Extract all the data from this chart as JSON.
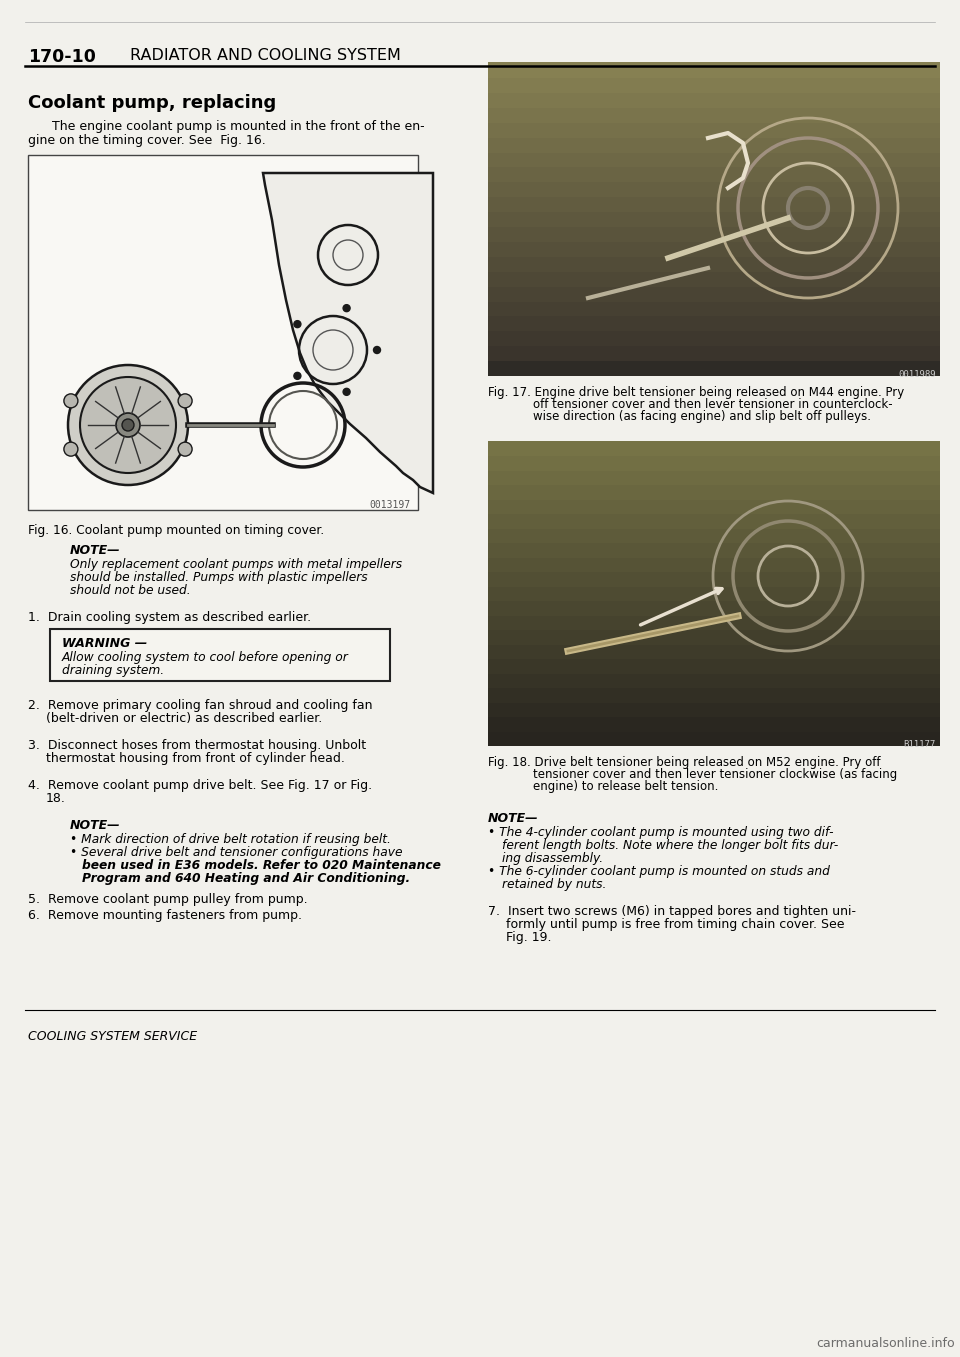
{
  "page_num": "170-10",
  "header_title": "RADIATOR AND COOLING SYSTEM",
  "section_title": "Coolant pump, replacing",
  "intro_line1": "The engine coolant pump is mounted in the front of the en-",
  "intro_line2": "gine on the timing cover. See  Fig. 16.",
  "fig16_caption": "Fig. 16. Coolant pump mounted on timing cover.",
  "fig16_code": "0013197",
  "note1_header": "NOTE—",
  "note1_lines": [
    "Only replacement coolant pumps with metal impellers",
    "should be installed. Pumps with plastic impellers",
    "should not be used."
  ],
  "step1": "1.  Drain cooling system as described earlier.",
  "warning_header": "WARNING —",
  "warning_lines": [
    "Allow cooling system to cool before opening or",
    "draining system."
  ],
  "step2_lines": [
    "2.  Remove primary cooling fan shroud and cooling fan",
    "(belt-driven or electric) as described earlier."
  ],
  "step3_lines": [
    "3.  Disconnect hoses from thermostat housing. Unbolt",
    "thermostat housing from front of cylinder head."
  ],
  "step4_lines": [
    "4.  Remove coolant pump drive belt. See Fig. 17 or Fig.",
    "18."
  ],
  "note2_header": "NOTE—",
  "note2_bullets": [
    "• Mark direction of drive belt rotation if reusing belt.",
    "• Several drive belt and tensioner configurations have",
    "been used in E36 models. Refer to 020 Maintenance",
    "Program and 640 Heating and Air Conditioning."
  ],
  "note2_bold_start": "020 Maintenance",
  "step5": "5.  Remove coolant pump pulley from pump.",
  "step6": "6.  Remove mounting fasteners from pump.",
  "fig17_cap_lines": [
    "Fig. 17. Engine drive belt tensioner being released on M44 engine. Pry",
    "off tensioner cover and then lever tensioner in counterclock-",
    "wise direction (as facing engine) and slip belt off pulleys."
  ],
  "fig17_code": "0011989",
  "fig18_cap_lines": [
    "Fig. 18. Drive belt tensioner being released on M52 engine. Pry off",
    "tensioner cover and then lever tensioner clockwise (as facing",
    "engine) to release belt tension."
  ],
  "fig18_code": "B11177",
  "note3_header": "NOTE—",
  "note3_bullets": [
    "• The 4-cylinder coolant pump is mounted using two dif-",
    "ferent length bolts. Note where the longer bolt fits dur-",
    "ing disassembly.",
    "• The 6-cylinder coolant pump is mounted on studs and",
    "retained by nuts."
  ],
  "step7_lines": [
    "7.  Insert two screws (M6) in tapped bores and tighten uni-",
    "formly until pump is free from timing chain cover. See",
    "Fig. 19."
  ],
  "footer_text": "COOLING SYSTEM SERVICE",
  "watermark": "carmanualsonline.info",
  "bg_color": "#f2f1ec",
  "text_color": "#000000"
}
